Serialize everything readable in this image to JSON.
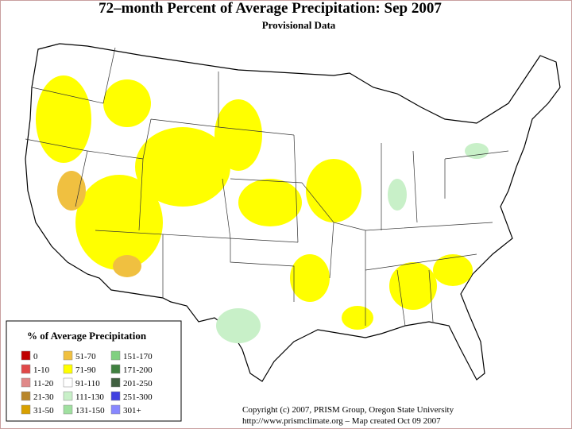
{
  "header": {
    "title": "72–month Percent of Average Precipitation: Sep 2007",
    "subtitle": "Provisional Data"
  },
  "legend": {
    "title": "% of Average Precipitation",
    "items": [
      {
        "label": "0",
        "color": "#c00000"
      },
      {
        "label": "1-10",
        "color": "#e04848"
      },
      {
        "label": "11-20",
        "color": "#e08888"
      },
      {
        "label": "21-30",
        "color": "#b8862a"
      },
      {
        "label": "31-50",
        "color": "#d8a000"
      },
      {
        "label": "51-70",
        "color": "#f0c040"
      },
      {
        "label": "71-90",
        "color": "#ffff00"
      },
      {
        "label": "91-110",
        "color": "#ffffff"
      },
      {
        "label": "111-130",
        "color": "#c8f0c8"
      },
      {
        "label": "131-150",
        "color": "#a0e0a0"
      },
      {
        "label": "151-170",
        "color": "#80d080"
      },
      {
        "label": "171-200",
        "color": "#408040"
      },
      {
        "label": "201-250",
        "color": "#406040"
      },
      {
        "label": "251-300",
        "color": "#4040e0"
      },
      {
        "label": "301+",
        "color": "#8888ff"
      }
    ]
  },
  "footer": {
    "copyright": "Copyright (c) 2007, PRISM Group, Oregon State University",
    "credit": "http://www.prismclimate.org  –  Map created Oct 09 2007"
  }
}
